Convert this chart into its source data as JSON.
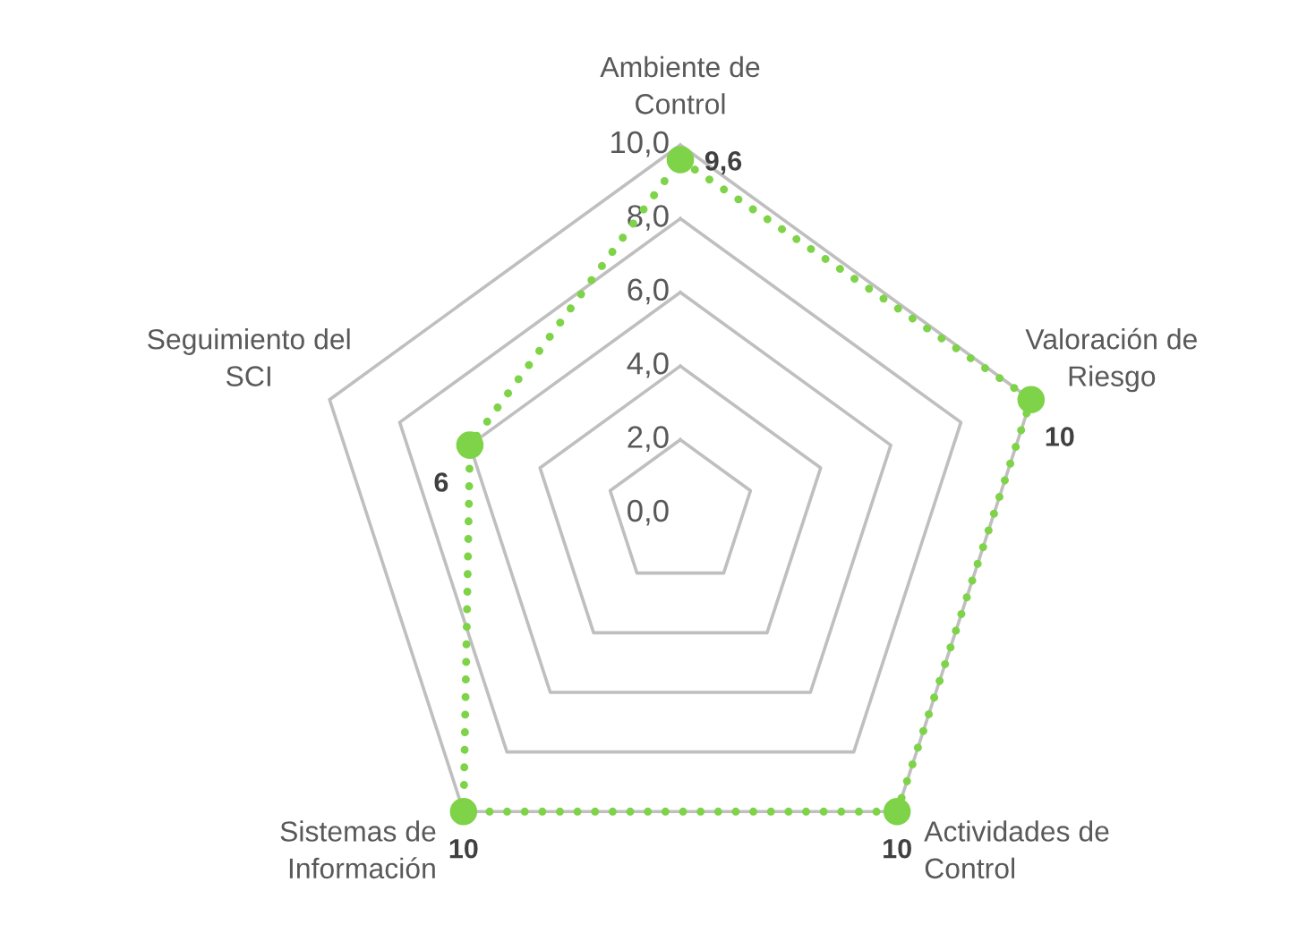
{
  "chart_data": {
    "type": "radar",
    "categories": [
      "Ambiente de\nControl",
      "Valoración de\nRiesgo",
      "Actividades de\nControl",
      "Sistemas de\nInformación",
      "Seguimiento del\nSCI"
    ],
    "series": [
      {
        "color": "#7ed348",
        "values": [
          9.6,
          10,
          10,
          10,
          6
        ],
        "value_labels": [
          "9,6",
          "10",
          "10",
          "10",
          "6"
        ]
      }
    ],
    "ylim": [
      0,
      10
    ],
    "yticks": [
      {
        "value": 0,
        "label": "0,0"
      },
      {
        "value": 2,
        "label": "2,0"
      },
      {
        "value": 4,
        "label": "4,0"
      },
      {
        "value": 6,
        "label": "6,0"
      },
      {
        "value": 8,
        "label": "8,0"
      },
      {
        "value": 10,
        "label": "10,0"
      }
    ],
    "grid": true,
    "marker": "circle",
    "line_style": "dotted"
  }
}
